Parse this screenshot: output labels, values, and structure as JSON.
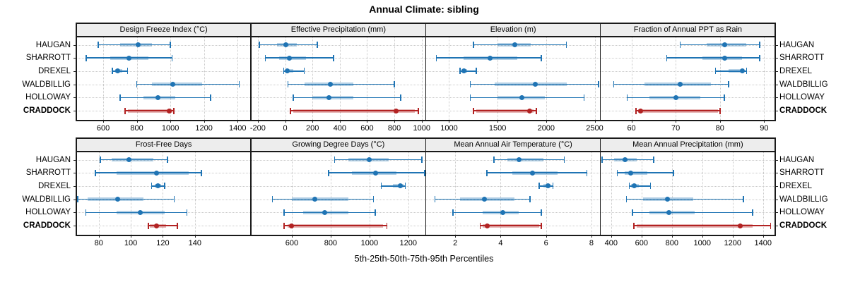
{
  "title": "Annual Climate: sibling",
  "footer": "5th-25th-50th-75th-95th Percentiles",
  "stations": [
    "HAUGAN",
    "SHARROTT",
    "DREXEL",
    "WALDBILLIG",
    "HOLLOWAY",
    "CRADDOCK"
  ],
  "highlight_station": "CRADDOCK",
  "colors": {
    "series": "#1F74B4",
    "series_band": "rgba(31,116,180,0.33)",
    "highlight": "#B22222",
    "highlight_band": "rgba(178,34,34,0.33)",
    "strip_bg": "#EDEDED",
    "panel_border": "#1A1A1A",
    "grid": "#C9C9C9",
    "text": "#000000"
  },
  "chart_data": {
    "type": "dot-whisker-percentile-trellis",
    "percentiles": [
      "5th",
      "25th",
      "50th",
      "75th",
      "95th"
    ],
    "layout": {
      "rows": 2,
      "cols": 4,
      "legend": "none",
      "grid": "dotted"
    },
    "panels": [
      {
        "title": "Design Freeze Index (°C)",
        "grid_row": 1,
        "grid_col": 1,
        "xlim": [
          440,
          1480
        ],
        "ticks": [
          600,
          800,
          1000,
          1200,
          1400
        ],
        "series": [
          {
            "station": "HAUGAN",
            "p": [
              570,
              700,
              810,
              890,
              1000
            ]
          },
          {
            "station": "SHARROTT",
            "p": [
              500,
              640,
              755,
              870,
              1010
            ]
          },
          {
            "station": "DREXEL",
            "p": [
              655,
              670,
              685,
              715,
              745
            ]
          },
          {
            "station": "WALDBILLIG",
            "p": [
              800,
              890,
              1015,
              1190,
              1410
            ]
          },
          {
            "station": "HOLLOWAY",
            "p": [
              700,
              840,
              925,
              1030,
              1240
            ]
          },
          {
            "station": "CRADDOCK",
            "p": [
              730,
              745,
              995,
              1010,
              1020
            ]
          }
        ]
      },
      {
        "title": "Effective Precipitation (mm)",
        "grid_row": 1,
        "grid_col": 2,
        "xlim": [
          -250,
          1030
        ],
        "ticks": [
          -200,
          0,
          200,
          400,
          600,
          800,
          1000
        ],
        "series": [
          {
            "station": "HAUGAN",
            "p": [
              -190,
              -60,
              5,
              85,
              235
            ]
          },
          {
            "station": "SHARROTT",
            "p": [
              -145,
              -45,
              30,
              150,
              355
            ]
          },
          {
            "station": "DREXEL",
            "p": [
              -10,
              0,
              15,
              60,
              140
            ]
          },
          {
            "station": "WALDBILLIG",
            "p": [
              20,
              140,
              330,
              500,
              800
            ]
          },
          {
            "station": "HOLLOWAY",
            "p": [
              60,
              200,
              320,
              500,
              845
            ]
          },
          {
            "station": "CRADDOCK",
            "p": [
              40,
              60,
              810,
              950,
              975
            ]
          }
        ]
      },
      {
        "title": "Elevation (m)",
        "grid_row": 1,
        "grid_col": 3,
        "xlim": [
          760,
          2560
        ],
        "ticks": [
          1000,
          1500,
          2000,
          2500
        ],
        "series": [
          {
            "station": "HAUGAN",
            "p": [
              1250,
              1500,
              1680,
              1840,
              2210
            ]
          },
          {
            "station": "SHARROTT",
            "p": [
              870,
              1150,
              1420,
              1700,
              1950
            ]
          },
          {
            "station": "DREXEL",
            "p": [
              1115,
              1130,
              1150,
              1185,
              1280
            ]
          },
          {
            "station": "WALDBILLIG",
            "p": [
              1220,
              1470,
              1890,
              2210,
              2540
            ]
          },
          {
            "station": "HOLLOWAY",
            "p": [
              1220,
              1500,
              1750,
              1990,
              2390
            ]
          },
          {
            "station": "CRADDOCK",
            "p": [
              1250,
              1280,
              1830,
              1870,
              1900
            ]
          }
        ]
      },
      {
        "title": "Fraction of Annual PPT as Rain",
        "grid_row": 1,
        "grid_col": 4,
        "xlim": [
          53,
          92.5
        ],
        "ticks": [
          60,
          70,
          80,
          90
        ],
        "series": [
          {
            "station": "HAUGAN",
            "p": [
              71,
              77,
              81,
              86,
              89
            ]
          },
          {
            "station": "SHARROTT",
            "p": [
              68,
              76,
              81,
              85,
              89
            ]
          },
          {
            "station": "DREXEL",
            "p": [
              79,
              82,
              85,
              85.5,
              86
            ]
          },
          {
            "station": "WALDBILLIG",
            "p": [
              56,
              63,
              71,
              78,
              82
            ]
          },
          {
            "station": "HOLLOWAY",
            "p": [
              59,
              64,
              70,
              75.5,
              81
            ]
          },
          {
            "station": "CRADDOCK",
            "p": [
              61,
              61.5,
              62,
              79.5,
              80
            ]
          }
        ]
      },
      {
        "title": "Frost-Free Days",
        "grid_row": 2,
        "grid_col": 1,
        "xlim": [
          66,
          175
        ],
        "ticks": [
          80,
          100,
          120,
          140
        ],
        "series": [
          {
            "station": "HAUGAN",
            "p": [
              81,
              88,
              99,
              114,
              123
            ]
          },
          {
            "station": "SHARROTT",
            "p": [
              78,
              91,
              116,
              136,
              144
            ]
          },
          {
            "station": "DREXEL",
            "p": [
              113,
              115,
              117,
              119,
              121
            ]
          },
          {
            "station": "WALDBILLIG",
            "p": [
              67,
              73,
              92,
              108,
              127
            ]
          },
          {
            "station": "HOLLOWAY",
            "p": [
              72,
              91,
              106,
              121,
              135
            ]
          },
          {
            "station": "CRADDOCK",
            "p": [
              111,
              112,
              116,
              122,
              129
            ]
          }
        ]
      },
      {
        "title": "Growing Degree Days (°C)",
        "grid_row": 2,
        "grid_col": 2,
        "xlim": [
          390,
          1290
        ],
        "ticks": [
          600,
          800,
          1000,
          1200
        ],
        "series": [
          {
            "station": "HAUGAN",
            "p": [
              820,
              890,
              1000,
              1100,
              1270
            ]
          },
          {
            "station": "SHARROTT",
            "p": [
              790,
              910,
              1030,
              1140,
              1285
            ]
          },
          {
            "station": "DREXEL",
            "p": [
              1060,
              1120,
              1160,
              1175,
              1185
            ]
          },
          {
            "station": "WALDBILLIG",
            "p": [
              500,
              600,
              720,
              890,
              1020
            ]
          },
          {
            "station": "HOLLOWAY",
            "p": [
              560,
              660,
              770,
              890,
              1030
            ]
          },
          {
            "station": "CRADDOCK",
            "p": [
              560,
              580,
              600,
              1070,
              1090
            ]
          }
        ]
      },
      {
        "title": "Mean Annual Air Temperature (°C)",
        "grid_row": 2,
        "grid_col": 3,
        "xlim": [
          0.7,
          8.4
        ],
        "ticks": [
          2,
          4,
          6,
          8
        ],
        "series": [
          {
            "station": "HAUGAN",
            "p": [
              3.7,
              4.3,
              4.8,
              5.9,
              6.8
            ]
          },
          {
            "station": "SHARROTT",
            "p": [
              3.4,
              4.5,
              5.4,
              6.5,
              7.8
            ]
          },
          {
            "station": "DREXEL",
            "p": [
              5.7,
              5.9,
              6.1,
              6.2,
              6.3
            ]
          },
          {
            "station": "WALDBILLIG",
            "p": [
              1.1,
              2.2,
              3.3,
              4.6,
              5.3
            ]
          },
          {
            "station": "HOLLOWAY",
            "p": [
              1.9,
              3.2,
              4.1,
              4.8,
              5.8
            ]
          },
          {
            "station": "CRADDOCK",
            "p": [
              3.1,
              3.2,
              3.4,
              5.7,
              5.8
            ]
          }
        ]
      },
      {
        "title": "Mean Annual Precipitation (mm)",
        "grid_row": 2,
        "grid_col": 4,
        "xlim": [
          330,
          1480
        ],
        "ticks": [
          400,
          600,
          800,
          1000,
          1200,
          1400
        ],
        "series": [
          {
            "station": "HAUGAN",
            "p": [
              340,
              420,
              490,
              570,
              680
            ]
          },
          {
            "station": "SHARROTT",
            "p": [
              440,
              490,
              530,
              640,
              810
            ]
          },
          {
            "station": "DREXEL",
            "p": [
              520,
              530,
              550,
              580,
              660
            ]
          },
          {
            "station": "WALDBILLIG",
            "p": [
              500,
              610,
              770,
              940,
              1270
            ]
          },
          {
            "station": "HOLLOWAY",
            "p": [
              540,
              650,
              780,
              950,
              1330
            ]
          },
          {
            "station": "CRADDOCK",
            "p": [
              550,
              570,
              1250,
              1330,
              1450
            ]
          }
        ]
      }
    ]
  }
}
